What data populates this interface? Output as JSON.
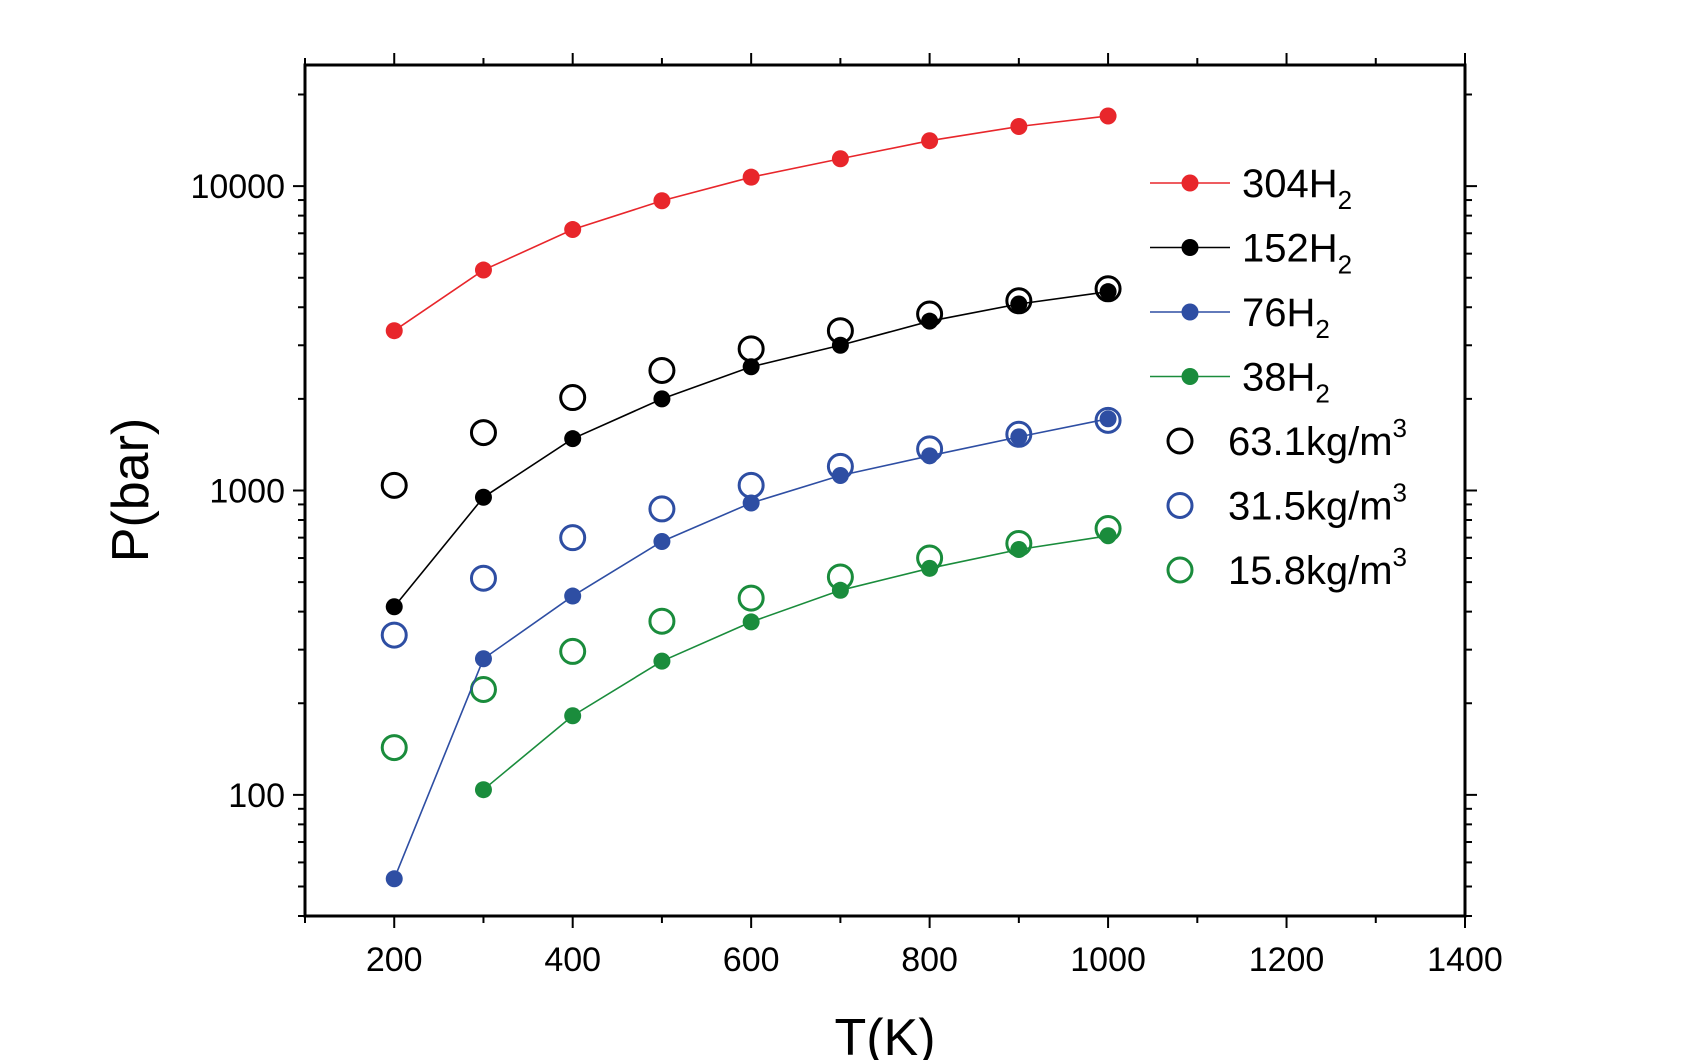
{
  "chart_data": {
    "type": "scatter",
    "title": "",
    "xlabel": "T(K)",
    "ylabel": "P(bar)",
    "xlim": [
      100,
      1400
    ],
    "ylim": [
      40,
      25000
    ],
    "yscale": "log",
    "x_ticks": [
      200,
      400,
      600,
      800,
      1000,
      1200,
      1400
    ],
    "x_tick_labels": [
      "200",
      "400",
      "600",
      "800",
      "1000",
      "1200",
      "1400"
    ],
    "y_ticks": [
      100,
      1000,
      10000
    ],
    "y_tick_labels": [
      "100",
      "1000",
      "10000"
    ],
    "grid": false,
    "legend_position": "right",
    "series": [
      {
        "label_main": "304H",
        "label_sub": "2",
        "label_sup": "",
        "marker": "filled-circle",
        "line": true,
        "color": "#e8262b",
        "x": [
          200,
          300,
          400,
          500,
          600,
          700,
          800,
          900,
          1000
        ],
        "y": [
          3350,
          5300,
          7200,
          8950,
          10700,
          12300,
          14100,
          15700,
          17000
        ]
      },
      {
        "label_main": "152H",
        "label_sub": "2",
        "label_sup": "",
        "marker": "filled-circle",
        "line": true,
        "color": "#000000",
        "x": [
          200,
          300,
          400,
          500,
          600,
          700,
          800,
          900,
          1000
        ],
        "y": [
          415,
          950,
          1480,
          2000,
          2550,
          3000,
          3600,
          4100,
          4500
        ]
      },
      {
        "label_main": "76H",
        "label_sub": "2",
        "label_sup": "",
        "marker": "filled-circle",
        "line": true,
        "color": "#2e4ea3",
        "x": [
          200,
          300,
          400,
          500,
          600,
          700,
          800,
          900,
          1000
        ],
        "y": [
          53,
          280,
          450,
          680,
          910,
          1120,
          1300,
          1500,
          1720
        ]
      },
      {
        "label_main": "38H",
        "label_sub": "2",
        "label_sup": "",
        "marker": "filled-circle",
        "line": true,
        "color": "#1a8c3c",
        "x": [
          300,
          400,
          500,
          600,
          700,
          800,
          900,
          1000
        ],
        "y": [
          104,
          182,
          275,
          370,
          470,
          555,
          640,
          710
        ]
      },
      {
        "label_main": "63.1kg/m",
        "label_sub": "",
        "label_sup": "3",
        "marker": "open-circle",
        "line": false,
        "color": "#000000",
        "x": [
          200,
          300,
          400,
          500,
          600,
          700,
          800,
          900,
          1000
        ],
        "y": [
          1040,
          1550,
          2020,
          2480,
          2920,
          3350,
          3800,
          4200,
          4600
        ]
      },
      {
        "label_main": "31.5kg/m",
        "label_sub": "",
        "label_sup": "3",
        "marker": "open-circle",
        "line": false,
        "color": "#2e4ea3",
        "x": [
          200,
          300,
          400,
          500,
          600,
          700,
          800,
          900,
          1000
        ],
        "y": [
          335,
          515,
          700,
          870,
          1040,
          1200,
          1370,
          1530,
          1700
        ]
      },
      {
        "label_main": "15.8kg/m",
        "label_sub": "",
        "label_sup": "3",
        "marker": "open-circle",
        "line": false,
        "color": "#1a8c3c",
        "x": [
          200,
          300,
          400,
          500,
          600,
          700,
          800,
          900,
          1000
        ],
        "y": [
          143,
          222,
          296,
          372,
          443,
          520,
          600,
          670,
          750
        ]
      }
    ]
  }
}
